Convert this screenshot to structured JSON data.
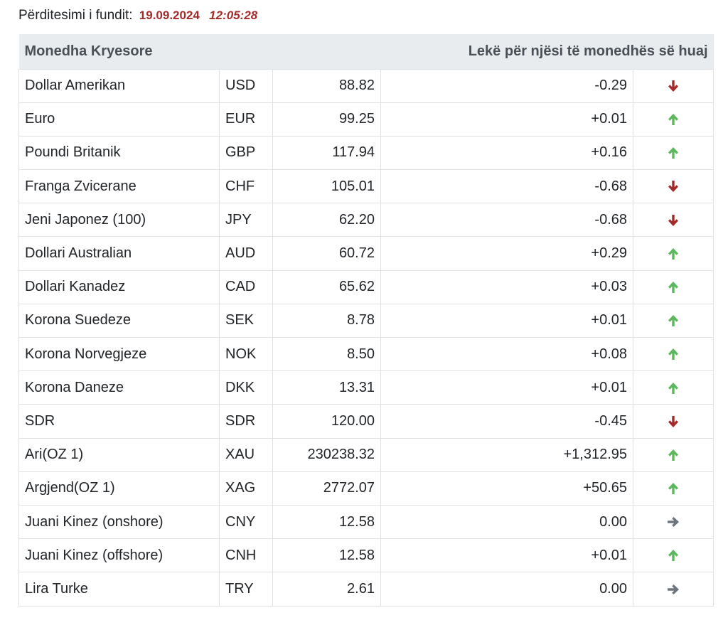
{
  "update": {
    "label": "Përditesimi i fundit:",
    "date": "19.09.2024",
    "time": "12:05:28"
  },
  "table": {
    "header_left": "Monedha Kryesore",
    "header_right": "Lekë për njësi të monedhës së huaj",
    "colors": {
      "up": "#5cb85c",
      "down": "#a52a2a",
      "flat": "#6c757d"
    },
    "rows": [
      {
        "name": "Dollar Amerikan",
        "code": "USD",
        "rate": "88.82",
        "change": "-0.29",
        "trend": "down"
      },
      {
        "name": "Euro",
        "code": "EUR",
        "rate": "99.25",
        "change": "+0.01",
        "trend": "up"
      },
      {
        "name": "Poundi Britanik",
        "code": "GBP",
        "rate": "117.94",
        "change": "+0.16",
        "trend": "up"
      },
      {
        "name": "Franga Zvicerane",
        "code": "CHF",
        "rate": "105.01",
        "change": "-0.68",
        "trend": "down"
      },
      {
        "name": "Jeni Japonez (100)",
        "code": "JPY",
        "rate": "62.20",
        "change": "-0.68",
        "trend": "down"
      },
      {
        "name": "Dollari Australian",
        "code": "AUD",
        "rate": "60.72",
        "change": "+0.29",
        "trend": "up"
      },
      {
        "name": "Dollari Kanadez",
        "code": "CAD",
        "rate": "65.62",
        "change": "+0.03",
        "trend": "up"
      },
      {
        "name": "Korona Suedeze",
        "code": "SEK",
        "rate": "8.78",
        "change": "+0.01",
        "trend": "up"
      },
      {
        "name": "Korona Norvegjeze",
        "code": "NOK",
        "rate": "8.50",
        "change": "+0.08",
        "trend": "up"
      },
      {
        "name": "Korona Daneze",
        "code": "DKK",
        "rate": "13.31",
        "change": "+0.01",
        "trend": "up"
      },
      {
        "name": "SDR",
        "code": "SDR",
        "rate": "120.00",
        "change": "-0.45",
        "trend": "down"
      },
      {
        "name": "Ari(OZ 1)",
        "code": "XAU",
        "rate": "230238.32",
        "change": "+1,312.95",
        "trend": "up"
      },
      {
        "name": "Argjend(OZ 1)",
        "code": "XAG",
        "rate": "2772.07",
        "change": "+50.65",
        "trend": "up"
      },
      {
        "name": "Juani Kinez (onshore)",
        "code": "CNY",
        "rate": "12.58",
        "change": "0.00",
        "trend": "flat"
      },
      {
        "name": "Juani Kinez (offshore)",
        "code": "CNH",
        "rate": "12.58",
        "change": "+0.01",
        "trend": "up"
      },
      {
        "name": "Lira Turke",
        "code": "TRY",
        "rate": "2.61",
        "change": "0.00",
        "trend": "flat"
      }
    ]
  }
}
